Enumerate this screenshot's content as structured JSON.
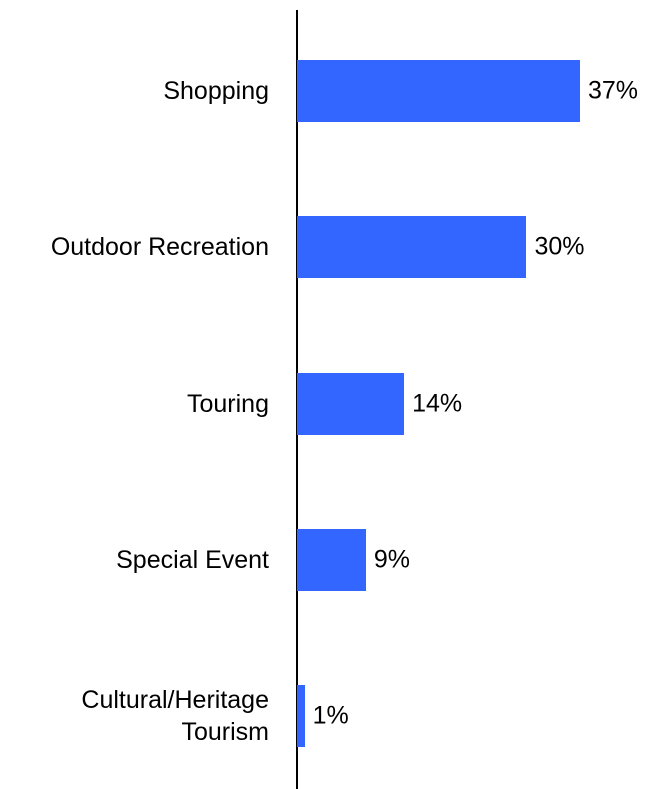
{
  "chart_data": {
    "type": "bar",
    "orientation": "horizontal",
    "categories": [
      "Shopping",
      "Outdoor Recreation",
      "Touring",
      "Special Event",
      "Cultural/Heritage Tourism"
    ],
    "values": [
      37,
      30,
      14,
      9,
      1
    ],
    "value_labels": [
      "37%",
      "30%",
      "14%",
      "9%",
      "1%"
    ],
    "color": "#3366ff"
  }
}
